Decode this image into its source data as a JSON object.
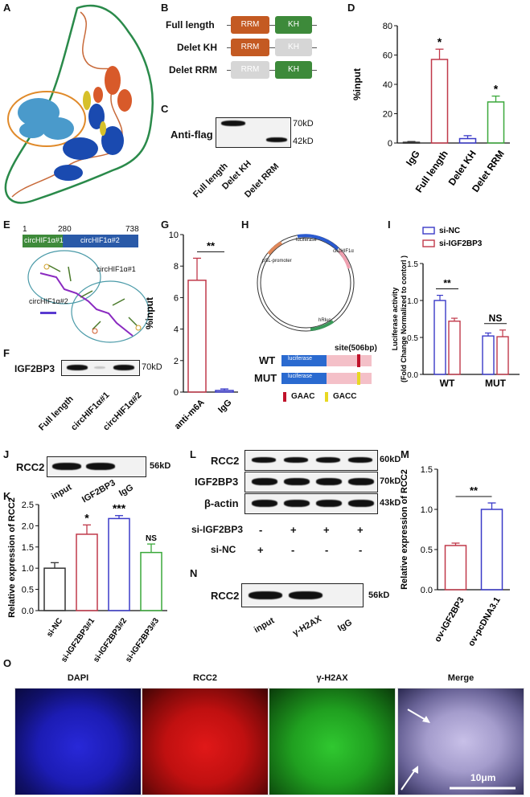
{
  "panels": {
    "A": "A",
    "B": "B",
    "C": "C",
    "D": "D",
    "E": "E",
    "F": "F",
    "G": "G",
    "H": "H",
    "I": "I",
    "J": "J",
    "K": "K",
    "L": "L",
    "M": "M",
    "N": "N",
    "O": "O"
  },
  "B": {
    "constructs": [
      "Full length",
      "Delet KH",
      "Delet RRM"
    ],
    "rrm": "RRM",
    "kh": "KH"
  },
  "C": {
    "label": "Anti-flag",
    "markers": [
      "70kD",
      "42kD"
    ],
    "lanes": [
      "Full length",
      "Delet KH",
      "Delet RRM"
    ]
  },
  "E": {
    "positions": [
      "1",
      "280",
      "738"
    ],
    "segments": [
      "circHIF1α#1",
      "circHIF1α#2"
    ],
    "structure_labels": [
      "circHIF1α#1",
      "circHIF1α#2"
    ]
  },
  "F": {
    "label": "IGF2BP3",
    "marker": "70kD",
    "lanes": [
      "Full length",
      "circHIF1α#1",
      "circHIF1α#2"
    ]
  },
  "H": {
    "wt": "WT",
    "mut": "MUT",
    "site": "site(506bp)",
    "luciferase": "luciferase",
    "legend_wt": "GAAC",
    "legend_mut": "GACC",
    "plasmid_labels": [
      "luciferase",
      "circHIF1α",
      "pSL-promoter",
      "hRluc"
    ]
  },
  "J": {
    "label": "RCC2",
    "marker": "56kD",
    "lanes": [
      "input",
      "IGF2BP3",
      "IgG"
    ]
  },
  "L": {
    "rows": [
      "RCC2",
      "IGF2BP3",
      "β-actin"
    ],
    "markers": [
      "60kD",
      "70kD",
      "43kD"
    ],
    "treat1_label": "si-IGF2BP3",
    "treat1": [
      "-",
      "+",
      "+",
      "+"
    ],
    "treat2_label": "si-NC",
    "treat2": [
      "+",
      "-",
      "-",
      "-"
    ]
  },
  "N": {
    "label": "RCC2",
    "marker": "56kD",
    "lanes": [
      "input",
      "γ-H2AX",
      "IgG"
    ]
  },
  "O": {
    "titles": [
      "DAPI",
      "RCC2",
      "γ-H2AX",
      "Merge"
    ],
    "scale": "10μm"
  },
  "chart_data": [
    {
      "id": "D",
      "type": "bar",
      "categories": [
        "IgG",
        "Full length",
        "Delet KH",
        "Delet RRM"
      ],
      "values": [
        0.5,
        57,
        3,
        28
      ],
      "errors": [
        0.5,
        7,
        2,
        4
      ],
      "significance": [
        "",
        "*",
        "",
        "*"
      ],
      "ylabel": "%input",
      "ylim": [
        0,
        80
      ],
      "yticks": [
        0,
        20,
        40,
        60,
        80
      ],
      "colors": [
        "#333333",
        "#c0394a",
        "#3a3ac8",
        "#3aa83a"
      ]
    },
    {
      "id": "G",
      "type": "bar",
      "categories": [
        "anti-m6A",
        "IgG"
      ],
      "values": [
        7.1,
        0.1
      ],
      "errors": [
        1.4,
        0.1
      ],
      "comparison": "**",
      "ylabel": "%input",
      "ylim": [
        0,
        10
      ],
      "yticks": [
        0,
        2,
        4,
        6,
        8,
        10
      ],
      "colors": [
        "#c0394a",
        "#3a3ac8"
      ]
    },
    {
      "id": "I",
      "type": "bar",
      "categories": [
        "WT",
        "MUT"
      ],
      "series": [
        {
          "name": "si-NC",
          "values": [
            1.0,
            0.52
          ],
          "errors": [
            0.07,
            0.04
          ]
        },
        {
          "name": "si-IGF2BP3",
          "values": [
            0.72,
            0.51
          ],
          "errors": [
            0.04,
            0.09
          ]
        }
      ],
      "comparisons": [
        "**",
        "NS"
      ],
      "ylabel": "Luciferase activity\n(Fold Change Normalized to contorl )",
      "ylim": [
        0,
        1.5
      ],
      "yticks": [
        "0.0",
        "0.5",
        "1.0",
        "1.5"
      ],
      "colors": [
        "#3a3ac8",
        "#c0394a"
      ]
    },
    {
      "id": "K",
      "type": "bar",
      "categories": [
        "si-NC",
        "si-IGF2BP3#1",
        "si-IGF2BP3#2",
        "si-IGF2BP3#3"
      ],
      "values": [
        1.0,
        1.8,
        2.17,
        1.37
      ],
      "errors": [
        0.13,
        0.22,
        0.07,
        0.2
      ],
      "significance": [
        "",
        "*",
        "***",
        "NS"
      ],
      "ylabel": "Relative expression of RCC2",
      "ylim": [
        0,
        2.5
      ],
      "yticks": [
        "0.0",
        "0.5",
        "1.0",
        "1.5",
        "2.0",
        "2.5"
      ],
      "colors": [
        "#333333",
        "#c0394a",
        "#3a3ac8",
        "#3aa83a"
      ]
    },
    {
      "id": "M",
      "type": "bar",
      "categories": [
        "ov-IGF2BP3",
        "ov-pcDNA3.1"
      ],
      "values": [
        0.55,
        1.0
      ],
      "errors": [
        0.03,
        0.08
      ],
      "comparison": "**",
      "ylabel": "Relative expression of RCC2",
      "ylim": [
        0,
        1.5
      ],
      "yticks": [
        "0.0",
        "0.5",
        "1.0",
        "1.5"
      ],
      "colors": [
        "#c0394a",
        "#3a3ac8"
      ]
    }
  ]
}
